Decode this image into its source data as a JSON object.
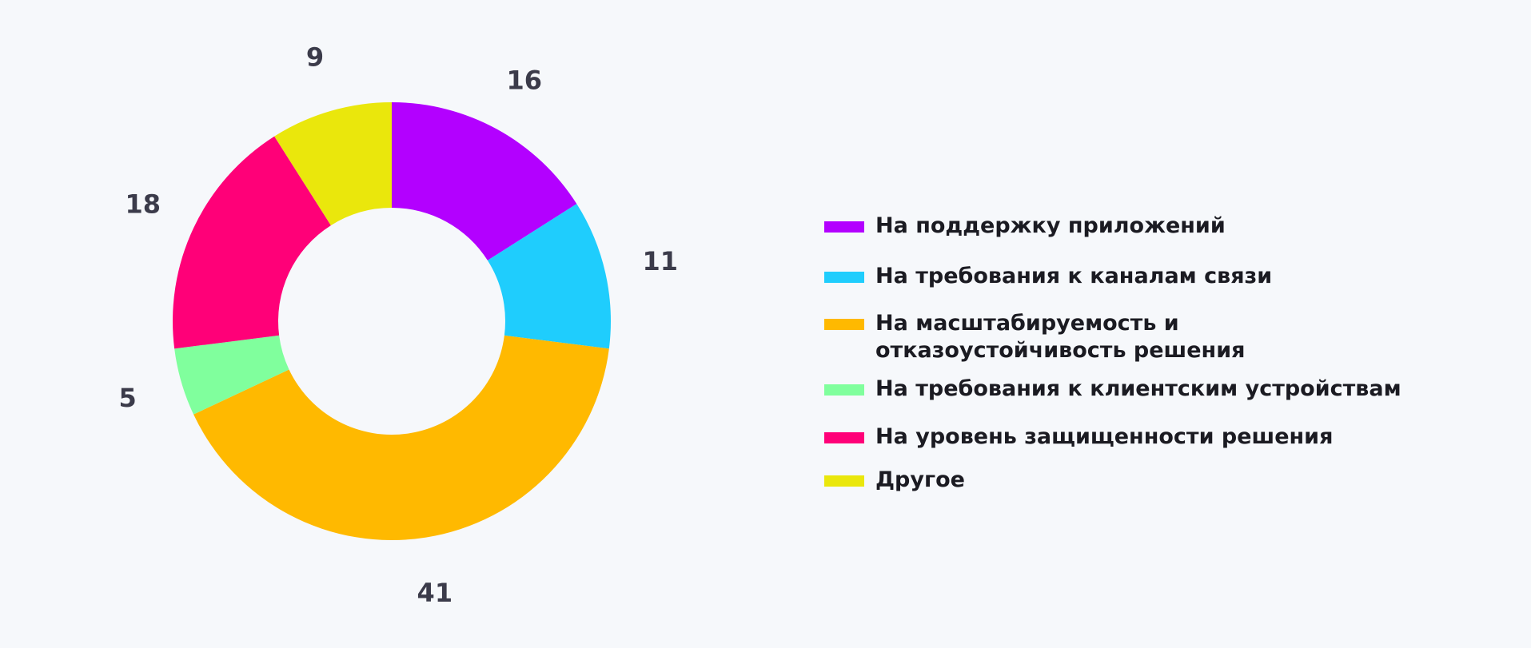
{
  "chart_data": {
    "type": "pie",
    "donut": true,
    "categories": [
      "На поддержку приложений",
      "На требования к каналам связи",
      "На масштабируемость и отказоустойчивость решения",
      "На требования к клиентским устройствам",
      "На уровень защищенности решения",
      "Другое"
    ],
    "values": [
      16,
      11,
      41,
      5,
      18,
      9
    ],
    "colors": [
      "#b300ff",
      "#1fcdfd",
      "#ffb900",
      "#80ff9d",
      "#ff0078",
      "#eae70c"
    ],
    "title": "",
    "legend_position": "right"
  }
}
